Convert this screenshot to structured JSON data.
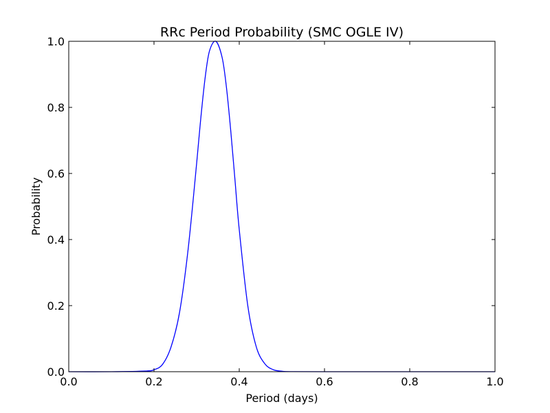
{
  "chart_data": {
    "type": "line",
    "title": "RRc Period Probability (SMC OGLE IV)",
    "xlabel": "Period (days)",
    "ylabel": "Probability",
    "xlim": [
      0.0,
      1.0
    ],
    "ylim": [
      0.0,
      1.0
    ],
    "xticks": [
      "0.0",
      "0.2",
      "0.4",
      "0.6",
      "0.8",
      "1.0"
    ],
    "yticks": [
      "0.0",
      "0.2",
      "0.4",
      "0.6",
      "0.8",
      "1.0"
    ],
    "grid": false,
    "series": [
      {
        "color": "#0000ff",
        "x": [
          0.0,
          0.1,
          0.18,
          0.2,
          0.22,
          0.24,
          0.26,
          0.28,
          0.3,
          0.31,
          0.32,
          0.33,
          0.345,
          0.36,
          0.37,
          0.38,
          0.39,
          0.4,
          0.42,
          0.44,
          0.46,
          0.48,
          0.5,
          0.52,
          0.6,
          0.8,
          1.0
        ],
        "y": [
          0.0,
          0.0,
          0.002,
          0.006,
          0.022,
          0.075,
          0.18,
          0.37,
          0.63,
          0.77,
          0.89,
          0.97,
          1.0,
          0.95,
          0.86,
          0.73,
          0.58,
          0.43,
          0.2,
          0.075,
          0.024,
          0.006,
          0.0015,
          0.0003,
          0.0,
          0.0,
          0.0
        ]
      }
    ]
  }
}
